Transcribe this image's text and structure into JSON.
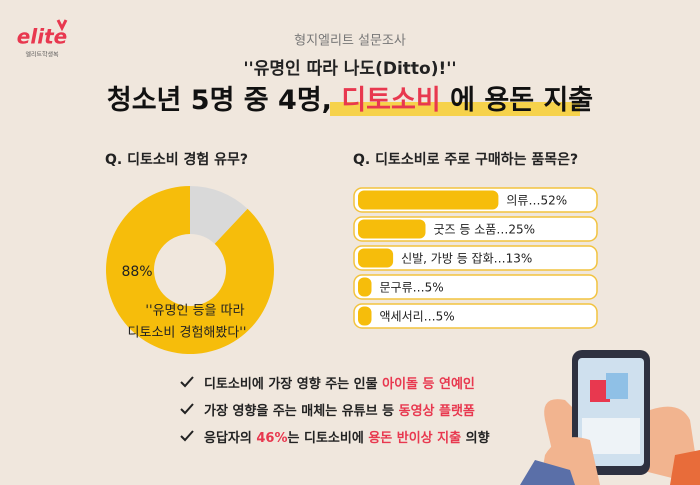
{
  "logo": {
    "brand": "elite",
    "tagline": "엘리트학생복"
  },
  "header": {
    "kicker": "형지엘리트 설문조사",
    "subtitle": "''유명인 따라 나도(Ditto)!''",
    "title": [
      "청소년 5명 중 4명, ",
      "디토소비",
      " 에 용돈 지출"
    ]
  },
  "chart_data": [
    {
      "type": "donut",
      "title": "Q. 디토소비 경험 유무?",
      "values": [
        88,
        12
      ],
      "value_labels": [
        "88%",
        null
      ],
      "colors": [
        "#f6bd0b",
        "#d9d9d9"
      ],
      "annotation": [
        "''유명인 등을 따라",
        "디토소비 경험해봤다''"
      ]
    },
    {
      "type": "hbar",
      "title": "Q. 디토소비로 주로 구매하는 품목은?",
      "values": [
        52,
        25,
        13,
        5,
        5
      ],
      "value_labels": [
        "의류…52%",
        "굿즈 등 소품…25%",
        "신발, 가방 등 잡화…13%",
        "문구류…5%",
        "액세서리…5%"
      ],
      "color": "#f6bd0b",
      "xlim": [
        0,
        100
      ]
    }
  ],
  "bullets": [
    [
      "디토소비에 가장 영향 주는 인물 ",
      "아이돌 등 연예인"
    ],
    [
      "가장 영향을 주는 매체는 유튜브 등 ",
      "동영상 플랫폼"
    ],
    [
      "응답자의 ",
      "46%",
      "는 디토소비에 ",
      "용돈 반이상 지출",
      " 의향"
    ]
  ]
}
